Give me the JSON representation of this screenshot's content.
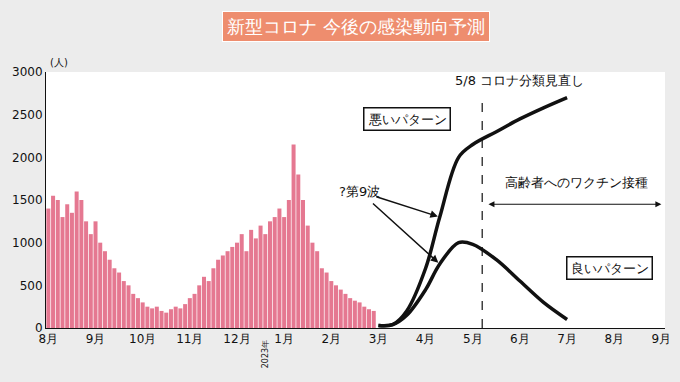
{
  "chart_data": {
    "type": "bar",
    "title": "新型コロナ 今後の感染動向予測",
    "ylabel": "(人)",
    "categories": [
      "8月",
      null,
      null,
      null,
      null,
      null,
      null,
      null,
      null,
      null,
      "9月",
      null,
      null,
      null,
      null,
      null,
      null,
      null,
      null,
      null,
      "10月",
      null,
      null,
      null,
      null,
      null,
      null,
      null,
      null,
      null,
      "11月",
      null,
      null,
      null,
      null,
      null,
      null,
      null,
      null,
      null,
      "12月",
      null,
      null,
      null,
      null,
      null,
      null,
      null,
      null,
      null,
      "1月",
      null,
      null,
      null,
      null,
      null,
      null,
      null,
      null,
      null,
      "2月",
      null,
      null,
      null,
      null,
      null,
      null,
      null,
      null,
      null,
      "3月",
      null,
      null,
      null,
      null,
      null,
      null,
      null,
      null,
      null,
      "4月",
      null,
      null,
      null,
      null,
      null,
      null,
      null,
      null,
      null,
      "5月",
      null,
      null,
      null,
      null,
      null,
      null,
      null,
      null,
      null,
      "6月",
      null,
      null,
      null,
      null,
      null,
      null,
      null,
      null,
      null,
      "7月",
      null,
      null,
      null,
      null,
      null,
      null,
      null,
      null,
      null,
      "8月",
      null,
      null,
      null,
      null,
      null,
      null,
      null,
      null,
      null,
      "9月"
    ],
    "series": [
      {
        "type": "bar",
        "color": "#e57891",
        "values": [
          1400,
          1550,
          1500,
          1300,
          1450,
          1350,
          1600,
          1500,
          1250,
          1100,
          1250,
          1000,
          900,
          800,
          700,
          650,
          550,
          500,
          400,
          350,
          300,
          250,
          230,
          250,
          200,
          180,
          220,
          250,
          230,
          280,
          350,
          400,
          500,
          600,
          550,
          700,
          800,
          850,
          900,
          950,
          1000,
          1100,
          900,
          1150,
          1050,
          1200,
          1100,
          1250,
          1300,
          1400,
          1300,
          1500,
          2150,
          1800,
          1500,
          1200,
          1000,
          900,
          700,
          650,
          550,
          500,
          450,
          400,
          350,
          320,
          300,
          250,
          220,
          200,
          null,
          null,
          null,
          null,
          null,
          null,
          null,
          null,
          null,
          null,
          null,
          null,
          null,
          null,
          null,
          null,
          null,
          null,
          null,
          null,
          null,
          null,
          null,
          null,
          null,
          null,
          null,
          null,
          null,
          null,
          null,
          null,
          null,
          null,
          null,
          null,
          null,
          null,
          null,
          null,
          null,
          null,
          null,
          null,
          null,
          null,
          null,
          null,
          null,
          null,
          null,
          null,
          null,
          null,
          null,
          null,
          null,
          null,
          null,
          null,
          null
        ]
      },
      {
        "type": "line",
        "name": "悪いパターン",
        "color": "#111111",
        "label_x": 76,
        "label_y": 2450,
        "values": [
          null,
          null,
          null,
          null,
          null,
          null,
          null,
          null,
          null,
          null,
          null,
          null,
          null,
          null,
          null,
          null,
          null,
          null,
          null,
          null,
          null,
          null,
          null,
          null,
          null,
          null,
          null,
          null,
          null,
          null,
          null,
          null,
          null,
          null,
          null,
          null,
          null,
          null,
          null,
          null,
          null,
          null,
          null,
          null,
          null,
          null,
          null,
          null,
          null,
          null,
          null,
          null,
          null,
          null,
          null,
          null,
          null,
          null,
          null,
          null,
          null,
          null,
          null,
          null,
          null,
          null,
          null,
          null,
          null,
          null,
          30,
          null,
          null,
          40,
          null,
          null,
          200,
          null,
          null,
          null,
          700,
          null,
          null,
          1300,
          null,
          null,
          null,
          2000,
          null,
          null,
          2150,
          null,
          null,
          null,
          null,
          2300,
          null,
          null,
          null,
          null,
          2450,
          null,
          null,
          null,
          null,
          2580,
          null,
          null,
          null,
          null,
          2700,
          null,
          null,
          null,
          null,
          null,
          null,
          null,
          null,
          null,
          null,
          null,
          null,
          null,
          null,
          null,
          null,
          null,
          null,
          null,
          null
        ]
      },
      {
        "type": "line",
        "name": "良いパターン",
        "color": "#111111",
        "label_x": 119,
        "label_y": 700,
        "values": [
          null,
          null,
          null,
          null,
          null,
          null,
          null,
          null,
          null,
          null,
          null,
          null,
          null,
          null,
          null,
          null,
          null,
          null,
          null,
          null,
          null,
          null,
          null,
          null,
          null,
          null,
          null,
          null,
          null,
          null,
          null,
          null,
          null,
          null,
          null,
          null,
          null,
          null,
          null,
          null,
          null,
          null,
          null,
          null,
          null,
          null,
          null,
          null,
          null,
          null,
          null,
          null,
          null,
          null,
          null,
          null,
          null,
          null,
          null,
          null,
          null,
          null,
          null,
          null,
          null,
          null,
          null,
          null,
          null,
          null,
          30,
          null,
          null,
          40,
          null,
          null,
          150,
          null,
          null,
          null,
          450,
          null,
          null,
          750,
          null,
          null,
          null,
          1000,
          null,
          null,
          980,
          null,
          null,
          null,
          null,
          800,
          null,
          null,
          null,
          null,
          550,
          null,
          null,
          null,
          null,
          300,
          null,
          null,
          null,
          null,
          100,
          null,
          null,
          null,
          null,
          null,
          null,
          null,
          null,
          null,
          null,
          null,
          null,
          null,
          null,
          null,
          null,
          null,
          null,
          null,
          null
        ]
      }
    ],
    "ylim": [
      0,
      3000
    ],
    "yticks": [
      0,
      500,
      1000,
      1500,
      2000,
      2500,
      3000
    ],
    "grid": false,
    "annotations": [
      {
        "text": "2023年",
        "x": 46,
        "below_axis": true
      },
      {
        "text": "?第9波",
        "x": 66,
        "y": 1600,
        "arrow_x": 83
      },
      {
        "text": "5/8 コロナ分類見直し",
        "x": 100,
        "y": 2900,
        "line_x": 92
      },
      {
        "text": "高齢者へのワクチン接種",
        "x": 112,
        "y": 1700,
        "span": [
          93,
          130
        ],
        "span_y": 1450
      }
    ]
  }
}
